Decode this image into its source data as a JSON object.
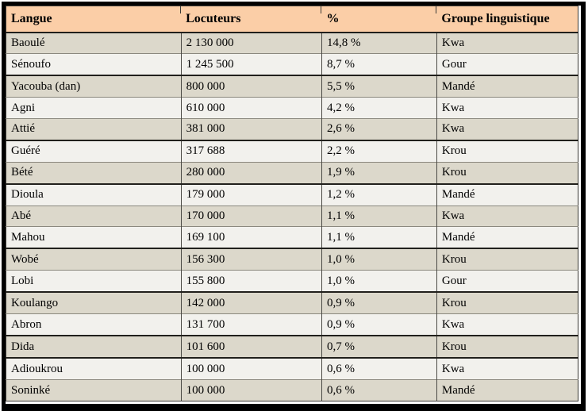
{
  "table": {
    "columns": [
      "Langue",
      "Locuteurs",
      "%",
      "Groupe linguistique"
    ],
    "rows": [
      [
        "Baoulé",
        "2 130 000",
        "14,8 %",
        "Kwa"
      ],
      [
        "Sénoufo",
        "1 245 500",
        "8,7 %",
        "Gour"
      ],
      [
        "Yacouba (dan)",
        "800 000",
        "5,5 %",
        "Mandé"
      ],
      [
        "Agni",
        "610 000",
        "4,2 %",
        "Kwa"
      ],
      [
        "Attié",
        "381 000",
        "2,6 %",
        "Kwa"
      ],
      [
        "Guéré",
        "317 688",
        "2,2 %",
        "Krou"
      ],
      [
        "Bété",
        "280 000",
        "1,9 %",
        "Krou"
      ],
      [
        "Dioula",
        "179 000",
        "1,2 %",
        "Mandé"
      ],
      [
        "Abé",
        "170 000",
        "1,1 %",
        "Kwa"
      ],
      [
        "Mahou",
        "169 100",
        "1,1 %",
        "Mandé"
      ],
      [
        "Wobé",
        "156 300",
        "1,0 %",
        "Krou"
      ],
      [
        "Lobi",
        "155 800",
        "1,0 %",
        "Gour"
      ],
      [
        "Koulango",
        "142 000",
        "0,9 %",
        "Krou"
      ],
      [
        "Abron",
        "131 700",
        "0,9 %",
        "Kwa"
      ],
      [
        "Dida",
        "101 600",
        "0,7 %",
        "Krou"
      ],
      [
        "Adioukrou",
        "100 000",
        "0,6 %",
        "Kwa"
      ],
      [
        "Soninké",
        "100 000",
        "0,6 %",
        "Mandé"
      ]
    ]
  },
  "colors": {
    "header_bg": "#fbcea7",
    "row_odd_bg": "#dcd8cb",
    "row_even_bg": "#f2f1ed",
    "frame": "#000000"
  }
}
